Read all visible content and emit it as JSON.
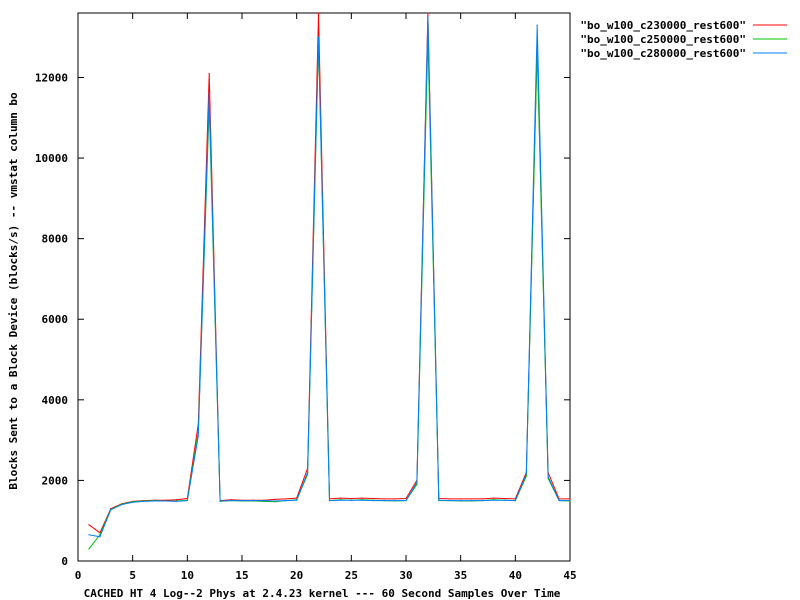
{
  "chart_data": {
    "type": "line",
    "title": "",
    "xlabel": "CACHED HT 4 Log--2 Phys at 2.4.23 kernel --- 60 Second Samples Over Time",
    "ylabel": "Blocks Sent to a Block Device (blocks/s) -- vmstat column bo",
    "xlim": [
      0,
      45
    ],
    "ylim": [
      0,
      13600
    ],
    "x_ticks": [
      0,
      5,
      10,
      15,
      20,
      25,
      30,
      35,
      40,
      45
    ],
    "y_ticks": [
      0,
      2000,
      4000,
      6000,
      8000,
      10000,
      12000
    ],
    "grid": false,
    "legend_position": "outside-top-right",
    "x": [
      1,
      2,
      3,
      4,
      5,
      6,
      7,
      8,
      9,
      10,
      11,
      12,
      13,
      14,
      15,
      16,
      17,
      18,
      19,
      20,
      21,
      22,
      23,
      24,
      25,
      26,
      27,
      28,
      29,
      30,
      31,
      32,
      33,
      34,
      35,
      36,
      37,
      38,
      39,
      40,
      41,
      42,
      43,
      44,
      45
    ],
    "series": [
      {
        "name": "\"bo_w100_c230000_rest600\"",
        "color": "#ff0000",
        "values": [
          900,
          700,
          1300,
          1420,
          1480,
          1500,
          1510,
          1510,
          1520,
          1550,
          3400,
          12100,
          1500,
          1520,
          1510,
          1510,
          1510,
          1530,
          1540,
          1560,
          2300,
          13600,
          1540,
          1560,
          1550,
          1560,
          1550,
          1540,
          1540,
          1550,
          2000,
          13600,
          1550,
          1540,
          1540,
          1540,
          1540,
          1560,
          1550,
          1540,
          2200,
          12800,
          2200,
          1540,
          1540
        ]
      },
      {
        "name": "\"bo_w100_c250000_rest600\"",
        "color": "#00c000",
        "values": [
          300,
          650,
          1280,
          1410,
          1470,
          1490,
          1500,
          1490,
          1490,
          1510,
          3200,
          11300,
          1480,
          1500,
          1490,
          1490,
          1480,
          1470,
          1500,
          1520,
          2150,
          12900,
          1500,
          1520,
          1510,
          1520,
          1510,
          1500,
          1490,
          1500,
          1900,
          13000,
          1500,
          1500,
          1490,
          1490,
          1500,
          1520,
          1510,
          1500,
          2100,
          12700,
          2050,
          1500,
          1490
        ]
      },
      {
        "name": "\"bo_w100_c280000_rest600\"",
        "color": "#0080ff",
        "values": [
          650,
          600,
          1270,
          1400,
          1460,
          1480,
          1490,
          1490,
          1480,
          1500,
          3100,
          11600,
          1490,
          1500,
          1500,
          1500,
          1500,
          1490,
          1500,
          1510,
          2200,
          13000,
          1500,
          1510,
          1510,
          1510,
          1500,
          1500,
          1500,
          1500,
          1950,
          13500,
          1510,
          1500,
          1500,
          1500,
          1500,
          1510,
          1510,
          1500,
          2150,
          13300,
          2100,
          1500,
          1500
        ]
      }
    ]
  }
}
